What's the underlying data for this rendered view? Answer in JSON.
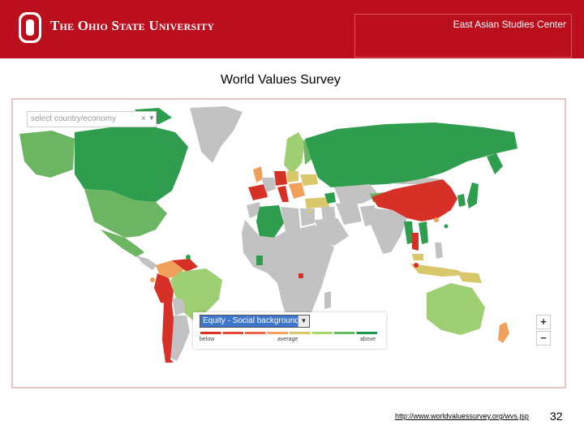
{
  "header": {
    "university": "The Ohio State University",
    "center_name": "East Asian Studies Center",
    "brand_color": "#bb0f1d"
  },
  "slide": {
    "title": "World Values Survey",
    "source_url": "http://www.worldvaluessurvey.org/wvs.jsp",
    "page_number": "32"
  },
  "map": {
    "country_select_placeholder": "select country/economy",
    "clear_icon": "close-icon",
    "dropdown_icon": "caret-down-icon",
    "measure_selected": "Equity - Social background",
    "legend": {
      "below_label": "below",
      "average_label": "average",
      "above_label": "above",
      "colors": [
        "#d7301f",
        "#e34a33",
        "#ef6548",
        "#f4a261",
        "#d9c86a",
        "#a6d96a",
        "#66bd63",
        "#1a9850"
      ]
    },
    "zoom_in_label": "+",
    "zoom_out_label": "−",
    "colors": {
      "no_data": "#c2c2c2",
      "high": "#2e9e4e",
      "mid_high": "#6bb563",
      "good": "#9fcf73",
      "average": "#d9c86a",
      "low_mid": "#f0a05a",
      "low": "#d73027"
    }
  }
}
